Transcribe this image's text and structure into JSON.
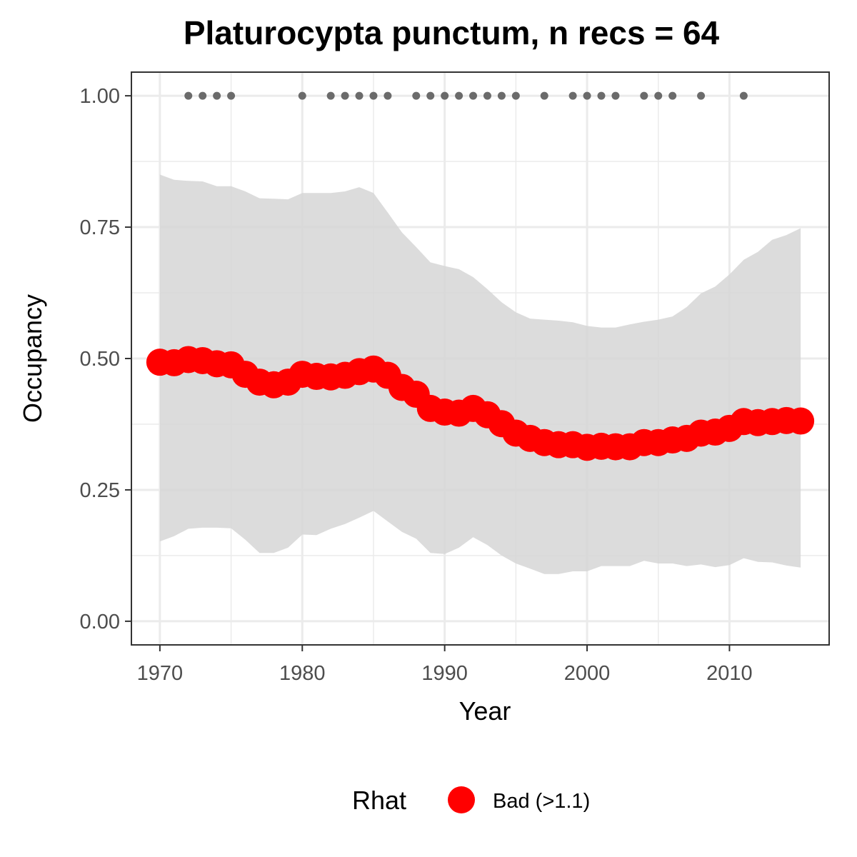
{
  "chart_data": {
    "type": "line",
    "title": "Platurocypta punctum, n recs = 64",
    "xlabel": "Year",
    "ylabel": "Occupancy",
    "xlim": [
      1968,
      2017
    ],
    "ylim": [
      -0.045,
      1.045
    ],
    "x_ticks": [
      1970,
      1980,
      1990,
      2000,
      2010
    ],
    "x_tick_labels": [
      "1970",
      "1980",
      "1990",
      "2000",
      "2010"
    ],
    "y_ticks": [
      0,
      0.25,
      0.5,
      0.75,
      1
    ],
    "y_tick_labels": [
      "0.00",
      "0.25",
      "0.50",
      "0.75",
      "1.00"
    ],
    "grid": true,
    "x": [
      1970,
      1971,
      1972,
      1973,
      1974,
      1975,
      1976,
      1977,
      1978,
      1979,
      1980,
      1981,
      1982,
      1983,
      1984,
      1985,
      1986,
      1987,
      1988,
      1989,
      1990,
      1991,
      1992,
      1993,
      1994,
      1995,
      1996,
      1997,
      1998,
      1999,
      2000,
      2001,
      2002,
      2003,
      2004,
      2005,
      2006,
      2007,
      2008,
      2009,
      2010,
      2011,
      2012,
      2013,
      2014,
      2015
    ],
    "occupancy": [
      0.493,
      0.492,
      0.498,
      0.496,
      0.49,
      0.488,
      0.47,
      0.455,
      0.45,
      0.455,
      0.47,
      0.466,
      0.465,
      0.468,
      0.475,
      0.48,
      0.468,
      0.445,
      0.432,
      0.405,
      0.398,
      0.396,
      0.405,
      0.393,
      0.376,
      0.358,
      0.348,
      0.34,
      0.336,
      0.336,
      0.331,
      0.333,
      0.332,
      0.332,
      0.34,
      0.34,
      0.345,
      0.348,
      0.358,
      0.36,
      0.367,
      0.38,
      0.378,
      0.38,
      0.382,
      0.381
    ],
    "upper_ci": [
      0.85,
      0.84,
      0.838,
      0.837,
      0.828,
      0.828,
      0.818,
      0.805,
      0.804,
      0.803,
      0.815,
      0.815,
      0.815,
      0.818,
      0.826,
      0.815,
      0.778,
      0.74,
      0.712,
      0.683,
      0.676,
      0.67,
      0.655,
      0.632,
      0.607,
      0.588,
      0.576,
      0.574,
      0.572,
      0.569,
      0.562,
      0.559,
      0.559,
      0.565,
      0.57,
      0.574,
      0.58,
      0.598,
      0.624,
      0.637,
      0.66,
      0.688,
      0.703,
      0.726,
      0.735,
      0.748
    ],
    "lower_ci": [
      0.152,
      0.162,
      0.176,
      0.178,
      0.178,
      0.177,
      0.155,
      0.13,
      0.13,
      0.14,
      0.165,
      0.164,
      0.176,
      0.185,
      0.197,
      0.21,
      0.19,
      0.17,
      0.157,
      0.13,
      0.128,
      0.14,
      0.16,
      0.145,
      0.125,
      0.11,
      0.1,
      0.09,
      0.09,
      0.095,
      0.095,
      0.105,
      0.105,
      0.105,
      0.115,
      0.11,
      0.11,
      0.105,
      0.108,
      0.103,
      0.107,
      0.12,
      0.113,
      0.112,
      0.106,
      0.102
    ],
    "record_years": [
      1972,
      1973,
      1974,
      1975,
      1980,
      1982,
      1983,
      1984,
      1985,
      1986,
      1988,
      1989,
      1990,
      1991,
      1992,
      1993,
      1994,
      1995,
      1997,
      1999,
      2000,
      2001,
      2002,
      2004,
      2005,
      2006,
      2008,
      2011
    ],
    "record_value": 1,
    "legend": {
      "title": "Rhat",
      "placement": "bottom",
      "entries": [
        {
          "label": "Bad (>1.1)",
          "color": "#ff0000"
        }
      ]
    },
    "colors": {
      "points": "#ff0000",
      "ribbon": "#d6d6d6",
      "records": "#6b6b6b",
      "grid": "#ebebeb",
      "panel_border": "#333333"
    }
  }
}
